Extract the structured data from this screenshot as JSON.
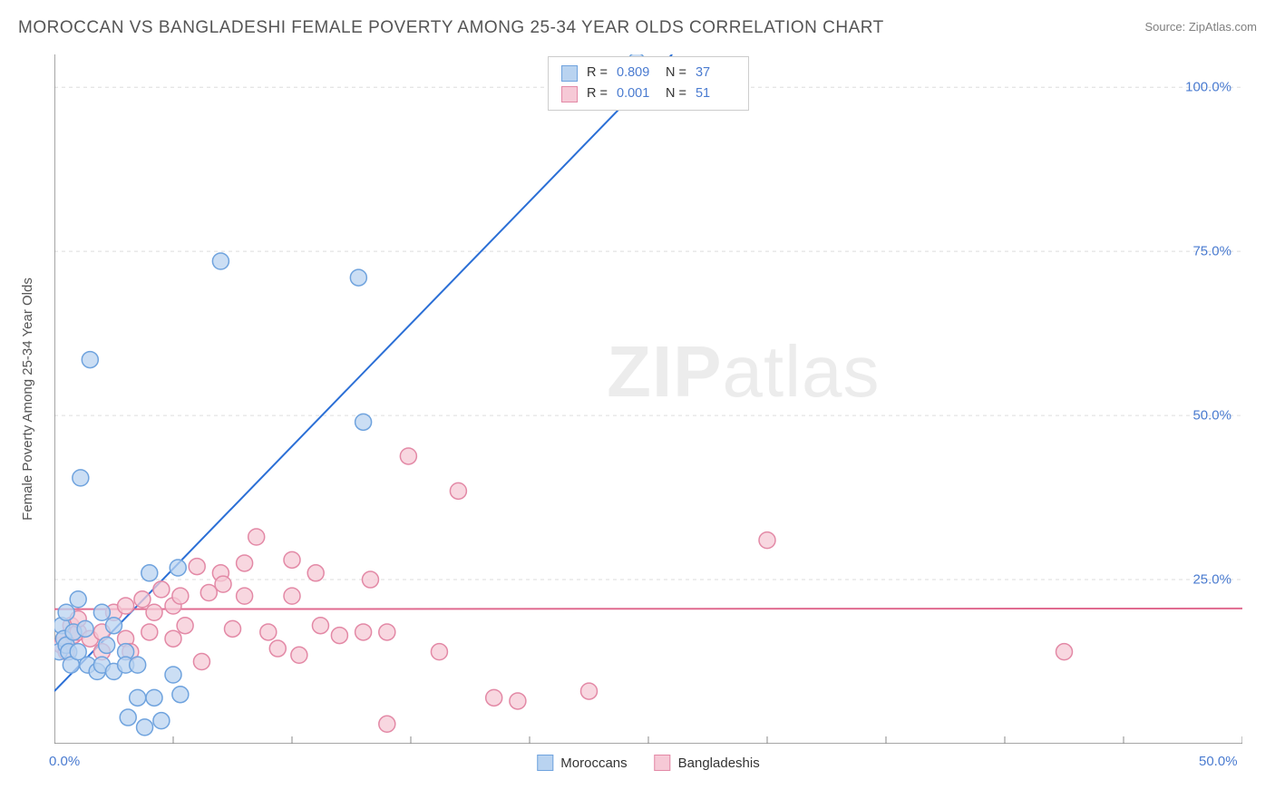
{
  "title": "MOROCCAN VS BANGLADESHI FEMALE POVERTY AMONG 25-34 YEAR OLDS CORRELATION CHART",
  "source": "Source: ZipAtlas.com",
  "y_axis_label": "Female Poverty Among 25-34 Year Olds",
  "watermark": {
    "part1": "ZIP",
    "part2": "atlas"
  },
  "chart": {
    "type": "scatter",
    "background_color": "#ffffff",
    "grid_color": "#dddddd",
    "axis_color": "#888888",
    "xlim": [
      0,
      50
    ],
    "ylim": [
      0,
      105
    ],
    "x_ticks": [
      0,
      5,
      10,
      15,
      20,
      25,
      30,
      35,
      40,
      45,
      50
    ],
    "x_tick_labels": {
      "0": "0.0%",
      "50": "50.0%"
    },
    "y_ticks": [
      25,
      50,
      75,
      100
    ],
    "y_tick_labels": {
      "25": "25.0%",
      "50": "50.0%",
      "75": "75.0%",
      "100": "100.0%"
    },
    "marker_radius": 9,
    "marker_stroke_width": 1.5,
    "line_width": 2,
    "series": [
      {
        "name": "Moroccans",
        "fill_color": "#b9d3f0",
        "stroke_color": "#6fa3de",
        "line_color": "#2b6fd6",
        "regression": {
          "x1": 0,
          "y1": 8,
          "x2": 26,
          "y2": 105
        },
        "stats": {
          "R": "0.809",
          "N": "37"
        },
        "points": [
          [
            0.2,
            14
          ],
          [
            0.3,
            18
          ],
          [
            0.4,
            16
          ],
          [
            0.5,
            20
          ],
          [
            0.5,
            15
          ],
          [
            0.6,
            14
          ],
          [
            0.7,
            12
          ],
          [
            0.8,
            17
          ],
          [
            1.0,
            22
          ],
          [
            1.0,
            14
          ],
          [
            1.1,
            40.5
          ],
          [
            1.3,
            17.5
          ],
          [
            1.4,
            12
          ],
          [
            1.5,
            58.5
          ],
          [
            1.8,
            11
          ],
          [
            2.0,
            12
          ],
          [
            2.0,
            20
          ],
          [
            2.2,
            15
          ],
          [
            2.5,
            18
          ],
          [
            2.5,
            11
          ],
          [
            3.0,
            14
          ],
          [
            3.0,
            12
          ],
          [
            3.1,
            4
          ],
          [
            3.5,
            12
          ],
          [
            3.5,
            7
          ],
          [
            3.8,
            2.5
          ],
          [
            4.0,
            26
          ],
          [
            4.2,
            7
          ],
          [
            4.5,
            3.5
          ],
          [
            5.0,
            10.5
          ],
          [
            5.2,
            26.8
          ],
          [
            5.3,
            7.5
          ],
          [
            7.0,
            73.5
          ],
          [
            12.8,
            71
          ],
          [
            13.0,
            49
          ],
          [
            24.5,
            104
          ],
          [
            25.0,
            103
          ]
        ]
      },
      {
        "name": "Bangladeshis",
        "fill_color": "#f6c9d6",
        "stroke_color": "#e389a6",
        "line_color": "#e06a8f",
        "regression": {
          "x1": 0,
          "y1": 20.5,
          "x2": 50,
          "y2": 20.6
        },
        "stats": {
          "R": "0.001",
          "N": "51"
        },
        "points": [
          [
            0.3,
            15
          ],
          [
            0.4,
            16
          ],
          [
            0.5,
            14
          ],
          [
            0.7,
            18
          ],
          [
            0.8,
            16.5
          ],
          [
            1.0,
            17
          ],
          [
            1.0,
            19
          ],
          [
            1.5,
            16
          ],
          [
            2.0,
            17
          ],
          [
            2.0,
            14
          ],
          [
            2.5,
            20
          ],
          [
            3.0,
            21
          ],
          [
            3.0,
            16
          ],
          [
            3.2,
            14
          ],
          [
            3.7,
            22
          ],
          [
            4.0,
            17
          ],
          [
            4.2,
            20
          ],
          [
            4.5,
            23.5
          ],
          [
            5.0,
            21
          ],
          [
            5.0,
            16
          ],
          [
            5.3,
            22.5
          ],
          [
            5.5,
            18
          ],
          [
            6.0,
            27
          ],
          [
            6.2,
            12.5
          ],
          [
            6.5,
            23
          ],
          [
            7.0,
            26
          ],
          [
            7.1,
            24.3
          ],
          [
            7.5,
            17.5
          ],
          [
            8.0,
            27.5
          ],
          [
            8.0,
            22.5
          ],
          [
            8.5,
            31.5
          ],
          [
            9.0,
            17
          ],
          [
            9.4,
            14.5
          ],
          [
            10.0,
            22.5
          ],
          [
            10.0,
            28
          ],
          [
            10.3,
            13.5
          ],
          [
            11.0,
            26
          ],
          [
            11.2,
            18
          ],
          [
            12.0,
            16.5
          ],
          [
            13.0,
            17
          ],
          [
            13.3,
            25
          ],
          [
            14.0,
            17
          ],
          [
            14.0,
            3
          ],
          [
            14.9,
            43.8
          ],
          [
            16.2,
            14
          ],
          [
            17.0,
            38.5
          ],
          [
            18.5,
            7
          ],
          [
            19.5,
            6.5
          ],
          [
            22.5,
            8
          ],
          [
            30.0,
            31
          ],
          [
            42.5,
            14
          ]
        ]
      }
    ]
  },
  "legend_top": {
    "r_label": "R =",
    "n_label": "N ="
  },
  "legend_bottom": {
    "items": [
      "Moroccans",
      "Bangladeshis"
    ]
  }
}
